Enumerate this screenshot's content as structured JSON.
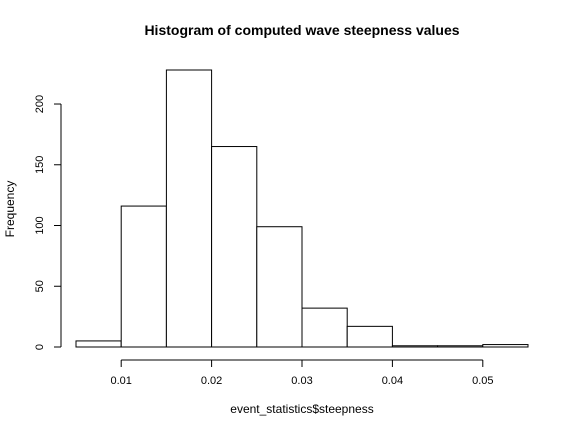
{
  "chart_data": {
    "type": "bar",
    "title": "Histogram of computed wave steepness values",
    "xlabel": "event_statistics$steepness",
    "ylabel": "Frequency",
    "bins": [
      [
        0.005,
        0.01
      ],
      [
        0.01,
        0.015
      ],
      [
        0.015,
        0.02
      ],
      [
        0.02,
        0.025
      ],
      [
        0.025,
        0.03
      ],
      [
        0.03,
        0.035
      ],
      [
        0.035,
        0.04
      ],
      [
        0.04,
        0.045
      ],
      [
        0.045,
        0.05
      ],
      [
        0.05,
        0.055
      ]
    ],
    "values": [
      5,
      116,
      228,
      165,
      99,
      32,
      17,
      1,
      1,
      2
    ],
    "xlim": [
      0.005,
      0.055
    ],
    "ylim": [
      0,
      228
    ],
    "xticks": [
      0.01,
      0.02,
      0.03,
      0.04,
      0.05
    ],
    "xtick_labels": [
      "0.01",
      "0.02",
      "0.03",
      "0.04",
      "0.05"
    ],
    "yticks": [
      0,
      50,
      100,
      150,
      200
    ],
    "ytick_labels": [
      "0",
      "50",
      "100",
      "150",
      "200"
    ],
    "grid": false,
    "legend": "none",
    "bar_fill": "#ffffff",
    "bar_stroke": "#000000"
  }
}
